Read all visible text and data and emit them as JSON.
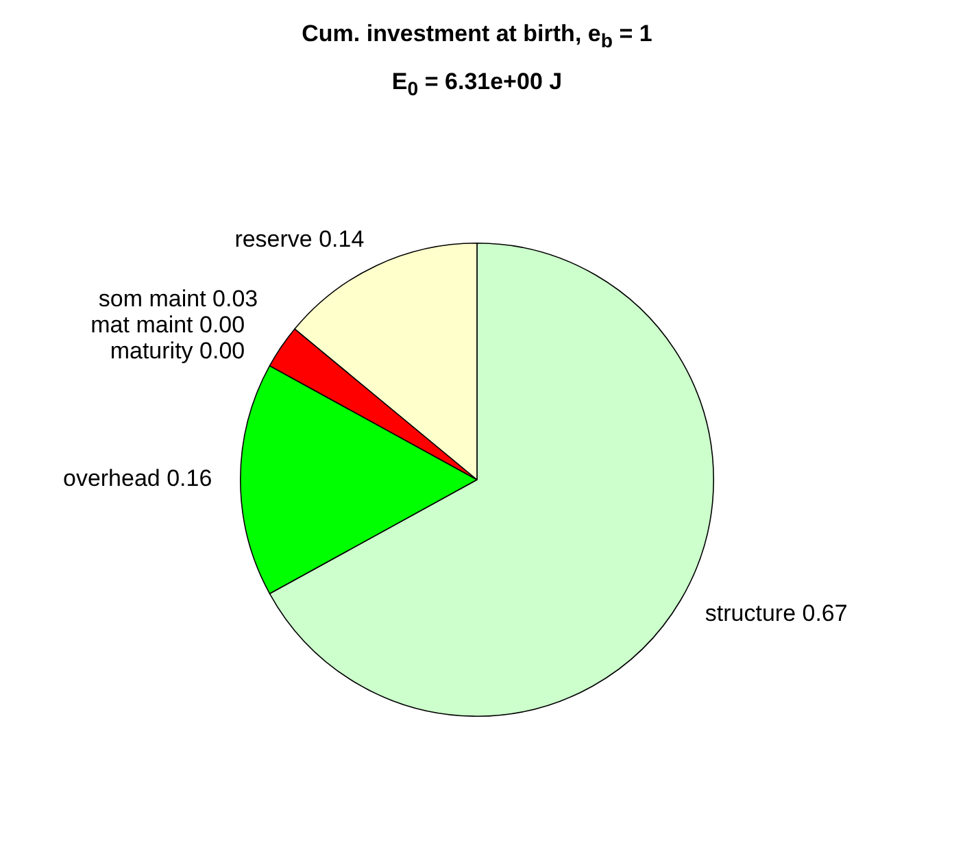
{
  "chart_data": {
    "type": "pie",
    "title": "Cum. investment at birth, e$_{b}$ = 1",
    "subtitle": "E$_{0}$ = 6.31e+00 J",
    "categories": [
      "structure 0.67",
      "overhead 0.16",
      "maturity 0.00",
      "mat maint 0.00",
      "som maint 0.03",
      "reserve 0.14"
    ],
    "values": [
      0.67,
      0.16,
      0.0,
      0.0,
      0.03,
      0.14
    ],
    "colors": [
      "#ccffcc",
      "#00ff00",
      "#000080",
      "#800080",
      "#ff0000",
      "#ffffcc"
    ],
    "legend": false
  }
}
